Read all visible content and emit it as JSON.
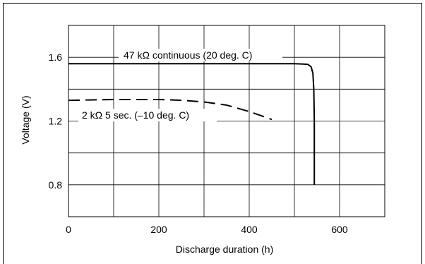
{
  "chart_data": {
    "type": "line",
    "title": "",
    "xlabel": "Discharge duration (h)",
    "ylabel": "Voltage (V)",
    "xlim": [
      0,
      700
    ],
    "ylim": [
      0.6,
      1.8
    ],
    "x_ticks": [
      {
        "value": 0,
        "label": "0"
      },
      {
        "value": 200,
        "label": "200"
      },
      {
        "value": 400,
        "label": "400"
      },
      {
        "value": 600,
        "label": "600"
      }
    ],
    "y_ticks": [
      {
        "value": 0.8,
        "label": "0.8"
      },
      {
        "value": 1.2,
        "label": "1.2"
      },
      {
        "value": 1.6,
        "label": "1.6"
      }
    ],
    "grid": true,
    "grid_x_step": 100,
    "grid_y_step": 0.2,
    "series": [
      {
        "name": "47 kΩ continuous (20 deg. C)",
        "style": "solid",
        "color": "#000000",
        "x": [
          0,
          100,
          200,
          300,
          400,
          500,
          520,
          530,
          537,
          541,
          543,
          544,
          544
        ],
        "y": [
          1.56,
          1.56,
          1.56,
          1.56,
          1.56,
          1.56,
          1.558,
          1.555,
          1.54,
          1.5,
          1.4,
          1.2,
          0.8
        ]
      },
      {
        "name": "2 kΩ 5 sec. (–10 deg. C)",
        "style": "dashed",
        "color": "#000000",
        "x": [
          0,
          100,
          200,
          250,
          300,
          350,
          400,
          450
        ],
        "y": [
          1.33,
          1.335,
          1.335,
          1.33,
          1.32,
          1.3,
          1.26,
          1.21
        ]
      }
    ]
  }
}
